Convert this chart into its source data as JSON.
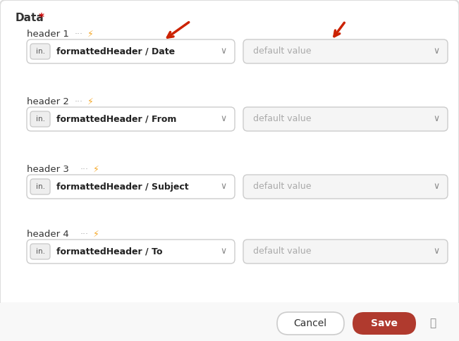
{
  "bg_color": "#ffffff",
  "panel_bg": "#f8f8f8",
  "border_color": "#dddddd",
  "title": "Data",
  "title_star_color": "#cc0000",
  "headers": [
    "header 1",
    "header 2",
    "header 3",
    "header 4"
  ],
  "left_values": [
    "formattedHeader / Date",
    "formattedHeader / From",
    "formattedHeader / Subject",
    "formattedHeader / To"
  ],
  "right_placeholder": "default value",
  "badge_text": "in.",
  "badge_bg": "#eeeeee",
  "badge_border": "#cccccc",
  "dropdown_color": "#888888",
  "header_label_color": "#333333",
  "dots_color": "#aaaaaa",
  "bolt_color": "#f5a623",
  "arrow_color": "#cc2200",
  "placeholder_color": "#aaaaaa",
  "left_box_color": "#ffffff",
  "left_box_border": "#cccccc",
  "right_box_color": "#f5f5f5",
  "right_box_border": "#cccccc",
  "cancel_btn_color": "#ffffff",
  "cancel_btn_border": "#cccccc",
  "cancel_btn_text": "Cancel",
  "cancel_text_color": "#333333",
  "save_btn_color": "#b03a2e",
  "save_btn_text": "Save",
  "save_text_color": "#ffffff",
  "trash_color": "#888888",
  "separator_color": "#e0e0e0",
  "footer_bg": "#f8f8f8"
}
